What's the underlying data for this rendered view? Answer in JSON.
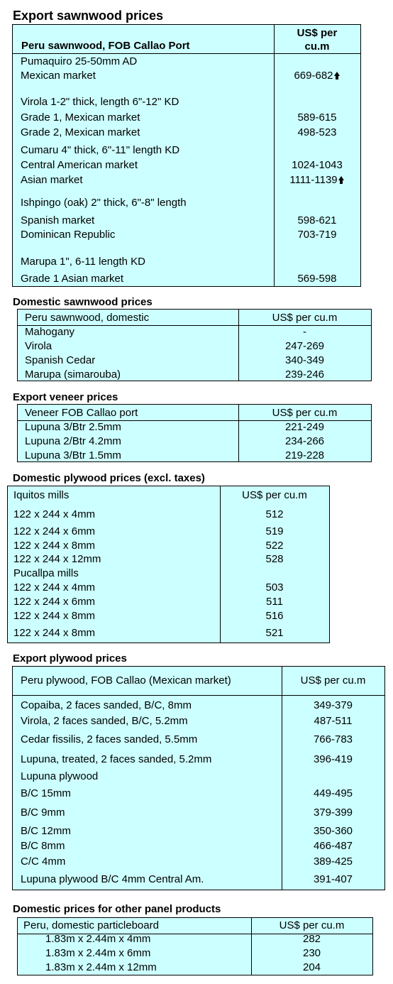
{
  "s1": {
    "title": "Export sawnwood prices",
    "head_left": "Peru sawnwood, FOB Callao Port",
    "head_right_1": "US$ per",
    "head_right_2": "cu.m",
    "rows": [
      {
        "label": "Pumaquiro 25-50mm AD",
        "value": ""
      },
      {
        "label": "Mexican market",
        "value": "669-682",
        "arrow": true
      },
      {
        "label": "Virola  1-2\" thick, length  6\"-12\" KD",
        "value": ""
      },
      {
        "label": "Grade 1, Mexican market",
        "value": "589-615"
      },
      {
        "label": "Grade 2, Mexican market",
        "value": "498-523"
      },
      {
        "label": "Cumaru 4\" thick, 6\"-11\" length KD",
        "value": ""
      },
      {
        "label": "Central American market",
        "value": "1024-1043"
      },
      {
        "label": "Asian market",
        "value": "1111-1139",
        "arrow": true
      },
      {
        "label": "Ishpingo (oak) 2\" thick, 6\"-8\" length",
        "value": ""
      },
      {
        "label": "Spanish market",
        "value": "598-621"
      },
      {
        "label": "Dominican Republic",
        "value": "703-719"
      },
      {
        "label": "Marupa  1\", 6-11 length KD",
        "value": ""
      },
      {
        "label": "Grade 1 Asian market",
        "value": "569-598"
      }
    ]
  },
  "s2": {
    "title": "Domestic sawnwood prices",
    "head_left": "Peru sawnwood, domestic",
    "head_right": "US$ per cu.m",
    "rows": [
      {
        "label": "Mahogany",
        "value": "-"
      },
      {
        "label": "Virola",
        "value": "247-269"
      },
      {
        "label": "Spanish Cedar",
        "value": "340-349"
      },
      {
        "label": "Marupa (simarouba)",
        "value": "239-246"
      }
    ]
  },
  "s3": {
    "title": "Export veneer prices",
    "head_left": "Veneer  FOB Callao port",
    "head_right": "US$ per cu.m",
    "rows": [
      {
        "label": "Lupuna 3/Btr 2.5mm",
        "value": "221-249"
      },
      {
        "label": "Lupuna 2/Btr 4.2mm",
        "value": "234-266"
      },
      {
        "label": "Lupuna 3/Btr 1.5mm",
        "value": "219-228"
      }
    ]
  },
  "s4": {
    "title": "Domestic plywood prices (excl. taxes)",
    "head_left": "Iquitos mills",
    "head_right": "US$ per cu.m",
    "rows": [
      {
        "label": "122 x 244 x 4mm",
        "value": "512"
      },
      {
        "label": "122 x 244 x 6mm",
        "value": "519"
      },
      {
        "label": "122 x 244 x 8mm",
        "value": "522"
      },
      {
        "label": "122 x 244 x 12mm",
        "value": "528"
      },
      {
        "label": "Pucallpa mills",
        "value": ""
      },
      {
        "label": "122 x 244 x 4mm",
        "value": "503"
      },
      {
        "label": "122 x 244 x 6mm",
        "value": "511"
      },
      {
        "label": "122 x 244 x 8mm",
        "value": "516"
      },
      {
        "label": "122 x 244 x 8mm",
        "value": "521"
      }
    ]
  },
  "s5": {
    "title": "Export plywood prices",
    "head_left": "Peru plywood, FOB Callao (Mexican market)",
    "head_right": "US$ per cu.m",
    "rows": [
      {
        "label": "Copaiba, 2 faces sanded, B/C, 8mm",
        "value": "349-379"
      },
      {
        "label": "Virola, 2 faces sanded, B/C, 5.2mm",
        "value": "487-511"
      },
      {
        "label": "Cedar fissilis, 2 faces sanded, 5.5mm",
        "value": "766-783"
      },
      {
        "label": "Lupuna, treated, 2 faces sanded, 5.2mm",
        "value": "396-419"
      },
      {
        "label": "Lupuna plywood",
        "value": ""
      },
      {
        "label": "B/C 15mm",
        "value": "449-495"
      },
      {
        "label": "B/C 9mm",
        "value": "379-399"
      },
      {
        "label": "B/C 12mm",
        "value": "350-360"
      },
      {
        "label": "B/C 8mm",
        "value": "466-487"
      },
      {
        "label": "C/C 4mm",
        "value": "389-425"
      },
      {
        "label": "Lupuna plywood B/C 4mm Central Am.",
        "value": "391-407"
      }
    ]
  },
  "s6": {
    "title": "Domestic prices for other panel products",
    "head_left": "Peru, domestic particleboard",
    "head_right": "US$ per cu.m",
    "rows": [
      {
        "label": "1.83m x 2.44m x 4mm",
        "value": "282"
      },
      {
        "label": "1.83m x 2.44m x 6mm",
        "value": "230"
      },
      {
        "label": "1.83m x 2.44m x 12mm",
        "value": "204"
      }
    ]
  }
}
